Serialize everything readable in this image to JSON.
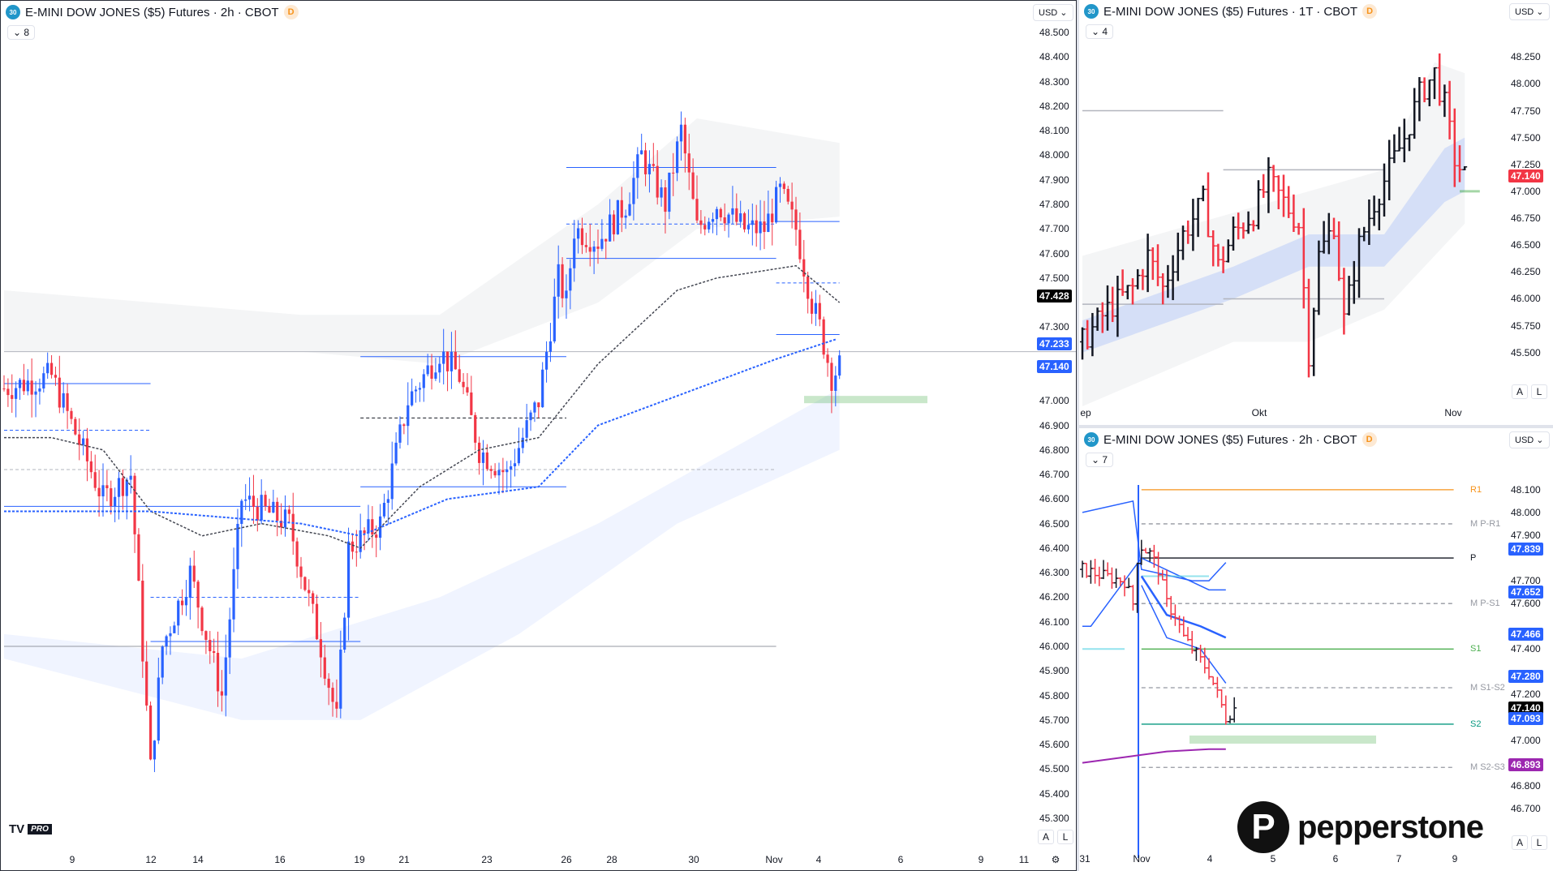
{
  "colors": {
    "up": "#2962ff",
    "down": "#f23645",
    "black": "#131722",
    "accent": "#2962ff",
    "purple": "#9c27b0",
    "orange": "#f7931a",
    "green": "#4caf50",
    "teal": "#089981"
  },
  "main": {
    "title": "E-MINI DOW JONES ($5) Futures · 2h · CBOT",
    "symbol_badge": "30",
    "delay_badge": "D",
    "indicators": "8",
    "currency": "USD",
    "price_range": [
      45.3,
      48.5
    ],
    "price_ticks": [
      "48.500",
      "48.400",
      "48.300",
      "48.200",
      "48.100",
      "48.000",
      "47.900",
      "47.800",
      "47.700",
      "47.600",
      "47.500",
      "47.300",
      "47.000",
      "46.900",
      "46.800",
      "46.700",
      "46.600",
      "46.500",
      "46.400",
      "46.300",
      "46.200",
      "46.100",
      "46.000",
      "45.900",
      "45.800",
      "45.700",
      "45.600",
      "45.500",
      "45.400",
      "45.300"
    ],
    "price_labels": [
      {
        "text": "47.428",
        "color": "#000000"
      },
      {
        "text": "47.233",
        "color": "#2962ff"
      },
      {
        "text": "47.140",
        "color": "#2962ff"
      }
    ],
    "time_labels": [
      "9",
      "12",
      "14",
      "16",
      "19",
      "21",
      "23",
      "26",
      "28",
      "30",
      "Nov",
      "4",
      "6",
      "9",
      "11"
    ],
    "auto": "A",
    "log": "L",
    "logo": "TV",
    "logo_pro": "PRO",
    "price_path": [
      [
        0,
        47.05
      ],
      [
        12,
        47.1
      ],
      [
        25,
        46.6
      ],
      [
        32,
        46.7
      ],
      [
        37,
        45.5
      ],
      [
        40,
        46.0
      ],
      [
        47,
        46.3
      ],
      [
        55,
        45.8
      ],
      [
        60,
        46.6
      ],
      [
        72,
        46.5
      ],
      [
        80,
        46.0
      ],
      [
        84,
        45.7
      ],
      [
        87,
        46.4
      ],
      [
        95,
        46.5
      ],
      [
        102,
        47.0
      ],
      [
        110,
        47.2
      ],
      [
        115,
        47.1
      ],
      [
        120,
        46.8
      ],
      [
        127,
        46.7
      ],
      [
        135,
        47.0
      ],
      [
        140,
        47.5
      ],
      [
        142,
        47.4
      ],
      [
        144,
        47.7
      ],
      [
        150,
        47.65
      ],
      [
        157,
        47.8
      ],
      [
        161,
        48.0
      ],
      [
        167,
        47.8
      ],
      [
        171,
        48.1
      ],
      [
        175,
        47.7
      ],
      [
        180,
        47.8
      ],
      [
        187,
        47.7
      ],
      [
        192,
        47.7
      ],
      [
        196,
        47.85
      ],
      [
        200,
        47.7
      ],
      [
        204,
        47.4
      ],
      [
        206,
        47.3
      ],
      [
        209,
        47.1
      ],
      [
        211,
        47.14
      ]
    ],
    "ma_slow": [
      [
        0,
        46.55
      ],
      [
        37,
        46.55
      ],
      [
        75,
        46.5
      ],
      [
        90,
        46.45
      ],
      [
        112,
        46.6
      ],
      [
        135,
        46.65
      ],
      [
        150,
        46.9
      ],
      [
        175,
        47.05
      ],
      [
        195,
        47.17
      ],
      [
        210,
        47.25
      ]
    ],
    "ma_fast": [
      [
        0,
        46.85
      ],
      [
        12,
        46.85
      ],
      [
        25,
        46.8
      ],
      [
        37,
        46.55
      ],
      [
        50,
        46.45
      ],
      [
        65,
        46.5
      ],
      [
        82,
        46.45
      ],
      [
        90,
        46.4
      ],
      [
        105,
        46.65
      ],
      [
        120,
        46.8
      ],
      [
        135,
        46.85
      ],
      [
        150,
        47.15
      ],
      [
        170,
        47.45
      ],
      [
        180,
        47.5
      ],
      [
        200,
        47.55
      ],
      [
        211,
        47.4
      ]
    ]
  },
  "top_right": {
    "title": "E-MINI DOW JONES ($5) Futures · 1T · CBOT",
    "symbol_badge": "30",
    "delay_badge": "D",
    "indicators": "4",
    "currency": "USD",
    "price_range": [
      45.4,
      48.35
    ],
    "price_ticks": [
      "48.250",
      "48.000",
      "47.750",
      "47.500",
      "47.250",
      "47.000",
      "46.750",
      "46.500",
      "46.250",
      "46.000",
      "45.750",
      "45.500"
    ],
    "price_labels": [
      {
        "text": "47.140",
        "color": "#f23645"
      }
    ],
    "time_labels": [
      "ep",
      "Okt",
      "Nov"
    ],
    "auto": "A",
    "log": "L",
    "price_path": [
      [
        0,
        45.6
      ],
      [
        5,
        45.9
      ],
      [
        10,
        46.1
      ],
      [
        13,
        46.4
      ],
      [
        16,
        46.1
      ],
      [
        20,
        46.6
      ],
      [
        24,
        46.9
      ],
      [
        27,
        46.3
      ],
      [
        30,
        46.6
      ],
      [
        34,
        46.8
      ],
      [
        37,
        47.1
      ],
      [
        40,
        46.9
      ],
      [
        43,
        46.7
      ],
      [
        45,
        45.5
      ],
      [
        47,
        46.4
      ],
      [
        50,
        46.7
      ],
      [
        52,
        45.8
      ],
      [
        55,
        46.5
      ],
      [
        58,
        46.9
      ],
      [
        61,
        47.2
      ],
      [
        64,
        47.5
      ],
      [
        67,
        47.9
      ],
      [
        70,
        48.1
      ],
      [
        72,
        47.8
      ],
      [
        74,
        47.3
      ],
      [
        76,
        47.14
      ]
    ]
  },
  "bottom_right": {
    "title": "E-MINI DOW JONES ($5) Futures · 2h · CBOT",
    "symbol_badge": "30",
    "delay_badge": "D",
    "indicators": "7",
    "currency": "USD",
    "price_range": [
      46.66,
      48.16
    ],
    "price_ticks": [
      "48.100",
      "48.000",
      "47.900",
      "47.700",
      "47.600",
      "47.400",
      "47.200",
      "47.000",
      "46.800",
      "46.700"
    ],
    "price_labels": [
      {
        "text": "47.839",
        "color": "#2962ff"
      },
      {
        "text": "47.652",
        "color": "#2962ff"
      },
      {
        "text": "47.466",
        "color": "#2962ff"
      },
      {
        "text": "47.280",
        "color": "#2962ff"
      },
      {
        "text": "47.140",
        "color": "#000000"
      },
      {
        "text": "47.093",
        "color": "#2962ff"
      },
      {
        "text": "46.893",
        "color": "#9c27b0"
      }
    ],
    "pivots": [
      {
        "label": "R1",
        "price": 48.1,
        "color": "#f7931a",
        "style": "solid"
      },
      {
        "label": "M P-R1",
        "price": 47.95,
        "color": "#9598a1",
        "style": "dashed"
      },
      {
        "label": "P",
        "price": 47.8,
        "color": "#131722",
        "style": "solid"
      },
      {
        "label": "M P-S1",
        "price": 47.6,
        "color": "#9598a1",
        "style": "dashed"
      },
      {
        "label": "S1",
        "price": 47.4,
        "color": "#4caf50",
        "style": "solid"
      },
      {
        "label": "M S1-S2",
        "price": 47.23,
        "color": "#9598a1",
        "style": "dashed"
      },
      {
        "label": "S2",
        "price": 47.07,
        "color": "#089981",
        "style": "solid"
      },
      {
        "label": "M S2-S3",
        "price": 46.88,
        "color": "#9598a1",
        "style": "dashed"
      }
    ],
    "time_labels": [
      "31",
      "Nov",
      "4",
      "5",
      "6",
      "7",
      "9"
    ],
    "auto": "A",
    "log": "L",
    "watermark": "pepperstone",
    "price_path": [
      [
        0,
        47.75
      ],
      [
        5,
        47.72
      ],
      [
        10,
        47.7
      ],
      [
        12,
        47.6
      ],
      [
        13,
        47.8
      ],
      [
        14,
        47.85
      ],
      [
        16,
        47.82
      ],
      [
        18,
        47.75
      ],
      [
        20,
        47.6
      ],
      [
        22,
        47.55
      ],
      [
        24,
        47.45
      ],
      [
        26,
        47.4
      ],
      [
        28,
        47.35
      ],
      [
        30,
        47.3
      ],
      [
        32,
        47.2
      ],
      [
        34,
        47.1
      ],
      [
        36,
        47.14
      ]
    ]
  }
}
